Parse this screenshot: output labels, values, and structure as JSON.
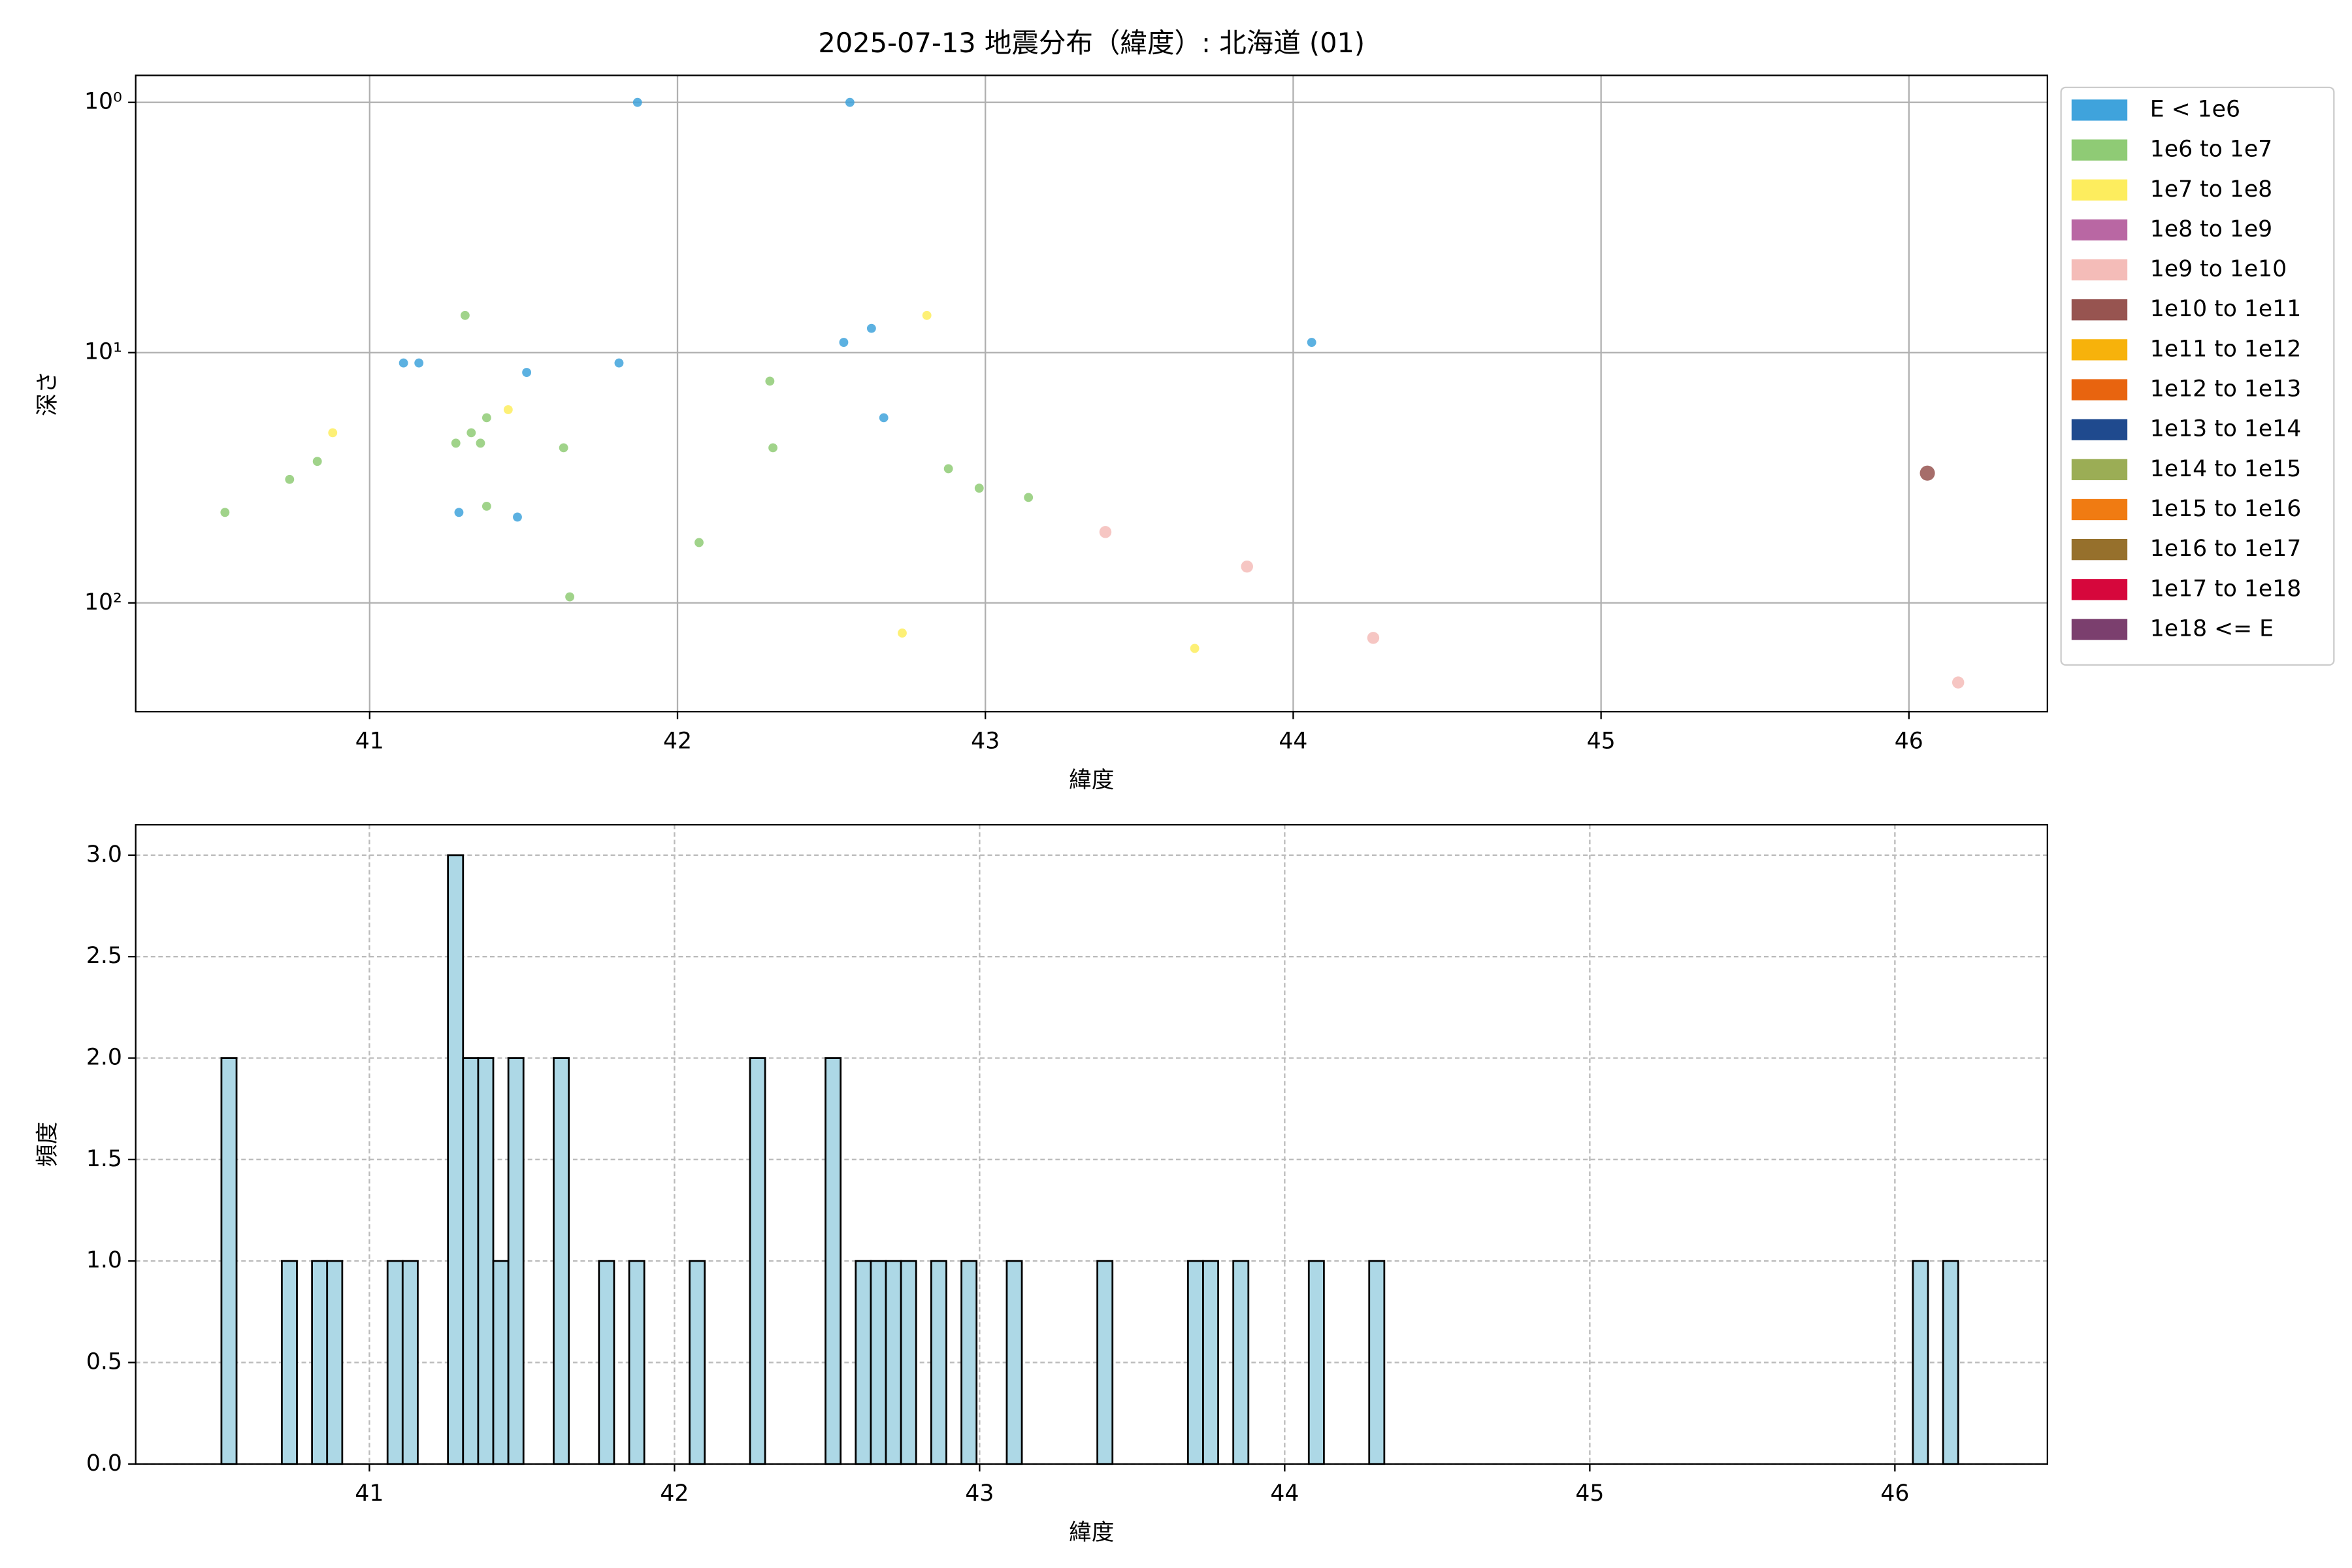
{
  "chart_data": [
    {
      "type": "scatter",
      "title": "2025-07-13 地震分布（緯度）: 北海道 (01)",
      "xlabel": "緯度",
      "ylabel": "深さ",
      "xlim": [
        40.24,
        46.45
      ],
      "xticks": [
        41,
        42,
        43,
        44,
        45,
        46
      ],
      "ylim": [
        272,
        0.78
      ],
      "ylog": true,
      "yticks": [
        {
          "value": 1,
          "label": "10⁰"
        },
        {
          "value": 10,
          "label": "10¹"
        },
        {
          "value": 100,
          "label": "10²"
        }
      ],
      "grid": true,
      "legend": "outside-upper-right",
      "series": [
        {
          "name": "E < 1e6",
          "color": "#3fa3dc",
          "marker_size": 3,
          "x": [
            41.87,
            42.56,
            41.11,
            41.16,
            41.51,
            41.81,
            42.54,
            42.63,
            42.67,
            44.06,
            41.29,
            41.48
          ],
          "y": [
            1.0,
            1.0,
            11.0,
            11.0,
            12.0,
            11.0,
            9.1,
            8.0,
            18.2,
            9.1,
            43.5,
            45.4
          ]
        },
        {
          "name": "1e6 to 1e7",
          "color": "#8fcb75",
          "marker_size": 3,
          "x": [
            40.53,
            40.74,
            40.83,
            41.31,
            41.28,
            41.33,
            41.36,
            41.38,
            41.38,
            41.63,
            41.65,
            42.07,
            42.3,
            42.31,
            42.88,
            42.98,
            43.14
          ],
          "y": [
            43.5,
            32.1,
            27.2,
            7.1,
            23.0,
            20.9,
            23.0,
            18.2,
            41.1,
            24.0,
            94.6,
            57.4,
            13.0,
            24.0,
            29.1,
            34.8,
            37.9
          ]
        },
        {
          "name": "1e7 to 1e8",
          "color": "#fded5e",
          "marker_size": 3,
          "x": [
            40.88,
            41.45,
            42.81,
            42.73,
            43.68
          ],
          "y": [
            20.9,
            16.9,
            7.1,
            132,
            152
          ]
        },
        {
          "name": "1e8 to 1e9",
          "color": "#b967a3",
          "marker_size": 3,
          "x": [],
          "y": []
        },
        {
          "name": "1e9 to 1e10",
          "color": "#f4bcb8",
          "marker_size": 4,
          "x": [
            43.39,
            43.85,
            44.26,
            46.16
          ],
          "y": [
            52.1,
            71.6,
            138,
            208
          ]
        },
        {
          "name": "1e10 to 1e11",
          "color": "#975450",
          "marker_size": 5,
          "x": [
            46.06
          ],
          "y": [
            30.3
          ]
        },
        {
          "name": "1e11 to 1e12",
          "color": "#f7b20b",
          "marker_size": 5,
          "x": [],
          "y": []
        },
        {
          "name": "1e12 to 1e13",
          "color": "#e8640f",
          "marker_size": 5,
          "x": [],
          "y": []
        },
        {
          "name": "1e13 to 1e14",
          "color": "#1f4a8e",
          "marker_size": 5,
          "x": [],
          "y": []
        },
        {
          "name": "1e14 to 1e15",
          "color": "#9bad55",
          "marker_size": 5,
          "x": [],
          "y": []
        },
        {
          "name": "1e15 to 1e16",
          "color": "#f07b12",
          "marker_size": 5,
          "x": [],
          "y": []
        },
        {
          "name": "1e16 to 1e17",
          "color": "#96702c",
          "marker_size": 5,
          "x": [],
          "y": []
        },
        {
          "name": "1e17 to 1e18",
          "color": "#d6073c",
          "marker_size": 5,
          "x": [],
          "y": []
        },
        {
          "name": "1e18 <= E",
          "color": "#7b3f6e",
          "marker_size": 5,
          "x": [],
          "y": []
        }
      ]
    },
    {
      "type": "histogram",
      "xlabel": "緯度",
      "ylabel": "頻度",
      "color": "#add8e6",
      "edgecolor": "#000000",
      "xlim": [
        40.234,
        46.5
      ],
      "xticks": [
        41,
        42,
        43,
        44,
        45,
        46
      ],
      "ylim": [
        0,
        3.15
      ],
      "yticks": [
        {
          "value": 0,
          "label": "0.0"
        },
        0.5,
        {
          "value": 1,
          "label": "1.0"
        },
        1.5,
        {
          "value": 2,
          "label": "2.0"
        },
        2.5,
        {
          "value": 3,
          "label": "3.0"
        }
      ],
      "grid": true,
      "grid_style": "dashed",
      "bins": [
        40.515,
        40.5645,
        40.713,
        40.7625,
        40.812,
        40.8615,
        40.911,
        41.0595,
        41.109,
        41.1585,
        41.2575,
        41.307,
        41.3565,
        41.406,
        41.4555,
        41.505,
        41.604,
        41.6535,
        41.7525,
        41.802,
        41.8515,
        41.901,
        42.0495,
        42.099,
        42.2475,
        42.297,
        42.495,
        42.5445,
        42.594,
        42.6435,
        42.693,
        42.7425,
        42.792,
        42.8415,
        42.891,
        42.9405,
        42.99,
        43.089,
        43.1385,
        43.386,
        43.4355,
        43.683,
        43.7325,
        43.782,
        43.8315,
        43.881,
        44.079,
        44.1285,
        44.277,
        44.3265,
        46.059,
        46.1085,
        46.158,
        46.2075
      ],
      "values": [
        2,
        0,
        1,
        0,
        1,
        1,
        0,
        1,
        1,
        0,
        3,
        2,
        2,
        1,
        2,
        0,
        2,
        0,
        1,
        0,
        1,
        0,
        1,
        0,
        2,
        0,
        2,
        0,
        1,
        1,
        1,
        1,
        0,
        1,
        0,
        1,
        0,
        1,
        0,
        1,
        0,
        1,
        1,
        0,
        1,
        0,
        1,
        0,
        1,
        0,
        1,
        0,
        1
      ]
    }
  ]
}
